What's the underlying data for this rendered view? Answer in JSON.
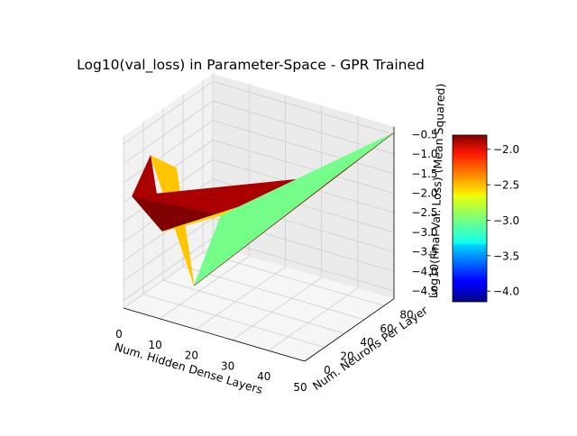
{
  "chart_data": {
    "type": "surface3d",
    "title": "Log10(val_loss) in Parameter-Space - GPR Trained",
    "xlabel": "Num. Hidden Dense Layers",
    "ylabel": "Num. Neurons Per Layer",
    "zlabel": "Log10(Final Val. Loss)  (Mean Squared)",
    "xlim": [
      0,
      50
    ],
    "ylim": [
      0,
      90
    ],
    "zlim": [
      -4.7,
      -0.3
    ],
    "x_ticks": [
      "0",
      "10",
      "20",
      "30",
      "40",
      "50"
    ],
    "y_ticks": [
      "0",
      "20",
      "40",
      "60",
      "80"
    ],
    "z_ticks": [
      "-4.5",
      "-4.0",
      "-3.5",
      "-3.0",
      "-2.5",
      "-2.0",
      "-1.5",
      "-1.0",
      "-0.5"
    ],
    "colormap": "jet",
    "colorbar": {
      "range": [
        -4.15,
        -1.8
      ],
      "ticks": [
        "-4.0",
        "-3.5",
        "-3.0",
        "-2.5",
        "-2.0"
      ]
    },
    "points": [
      {
        "x": 1,
        "y": 5,
        "z": -1.9
      },
      {
        "x": 2,
        "y": 20,
        "z": -1.1
      },
      {
        "x": 5,
        "y": 35,
        "z": -1.6
      },
      {
        "x": 8,
        "y": 10,
        "z": -2.7
      },
      {
        "x": 14,
        "y": 20,
        "z": -4.1
      },
      {
        "x": 16,
        "y": 40,
        "z": -2.6
      },
      {
        "x": 46,
        "y": 48,
        "z": -0.9
      },
      {
        "x": 50,
        "y": 90,
        "z": -0.45
      }
    ],
    "triangles": [
      {
        "v": [
          1,
          2,
          4
        ],
        "z": -2.55
      },
      {
        "v": [
          0,
          1,
          3
        ],
        "z": -1.9
      },
      {
        "v": [
          0,
          3,
          5
        ],
        "z": -1.8
      },
      {
        "v": [
          0,
          5,
          6
        ],
        "z": -1.9
      },
      {
        "v": [
          3,
          5,
          6
        ],
        "z": -2.6
      },
      {
        "v": [
          4,
          5,
          6
        ],
        "z": -3.1
      },
      {
        "v": [
          4,
          5,
          7
        ],
        "z": -3.0
      },
      {
        "v": [
          4,
          6,
          7
        ],
        "z": -1.8
      }
    ]
  }
}
